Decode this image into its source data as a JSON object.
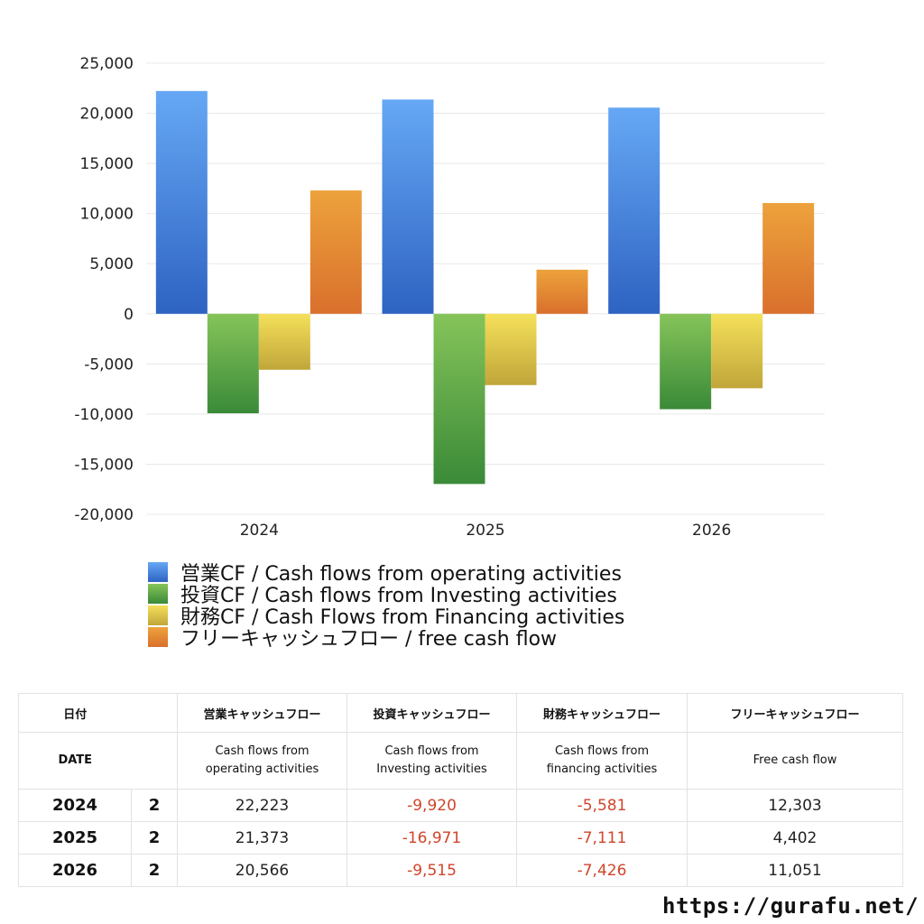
{
  "chart_data": {
    "type": "bar",
    "categories": [
      "2024",
      "2025",
      "2026"
    ],
    "series": [
      {
        "name": "営業CF / Cash flows from operating activities",
        "values": [
          22223,
          21373,
          20566
        ],
        "color_top": "#66a8f5",
        "color_bottom": "#2e63c2"
      },
      {
        "name": "投資CF / Cash flows from Investing activities",
        "values": [
          -9920,
          -16971,
          -9515
        ],
        "color_top": "#86c45a",
        "color_bottom": "#3a8a38"
      },
      {
        "name": "財務CF / Cash Flows from Financing activities",
        "values": [
          -5581,
          -7111,
          -7426
        ],
        "color_top": "#f5e05a",
        "color_bottom": "#c0a63a"
      },
      {
        "name": "フリーキャッシュフロー / free cash flow",
        "values": [
          12303,
          4402,
          11051
        ],
        "color_top": "#eda23c",
        "color_bottom": "#d9702c"
      }
    ],
    "ylim": [
      -20000,
      25000
    ],
    "yticks": [
      25000,
      20000,
      15000,
      10000,
      5000,
      0,
      -5000,
      -10000,
      -15000,
      -20000
    ],
    "ytick_labels": [
      "25,000",
      "20,000",
      "15,000",
      "10,000",
      "5,000",
      "0",
      "-5,000",
      "-10,000",
      "-15,000",
      "-20,000"
    ],
    "grid": true,
    "legend_position": "bottom-left"
  },
  "table": {
    "header_jp": {
      "date": "日付",
      "operating": "営業キャッシュフロー",
      "investing": "投資キャッシュフロー",
      "financing": "財務キャッシュフロー",
      "free": "フリーキャッシュフロー"
    },
    "header_en": {
      "date": "DATE",
      "operating_1": "Cash flows from",
      "operating_2": "operating activities",
      "investing_1": "Cash flows from",
      "investing_2": "Investing activities",
      "financing_1": "Cash flows from",
      "financing_2": "financing activities",
      "free": "Free cash flow"
    },
    "rows": [
      {
        "year": "2024",
        "q": "2",
        "operating": "22,223",
        "investing": "-9,920",
        "financing": "-5,581",
        "free": "12,303"
      },
      {
        "year": "2025",
        "q": "2",
        "operating": "21,373",
        "investing": "-16,971",
        "financing": "-7,111",
        "free": "4,402"
      },
      {
        "year": "2026",
        "q": "2",
        "operating": "20,566",
        "investing": "-9,515",
        "financing": "-7,426",
        "free": "11,051"
      }
    ],
    "negative_color": "#d0452a"
  },
  "footer": {
    "url": "https://gurafu.net/"
  }
}
